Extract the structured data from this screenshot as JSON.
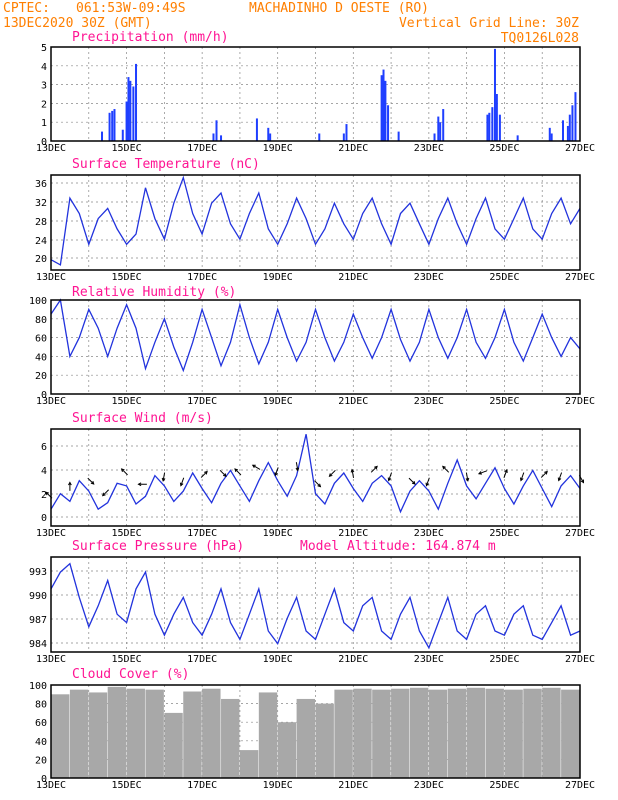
{
  "header": {
    "source": "CPTEC:",
    "coords": "061:53W-09:49S",
    "location": "MACHADINHO D OESTE (RO)",
    "date": "13DEC2020 30Z (GMT)",
    "grid_note": "Vertical Grid Line: 30Z",
    "model": "TQ0126L028",
    "altitude_label": "Model Altitude: 164.874 m"
  },
  "x_labels": [
    "13DEC",
    "15DEC",
    "17DEC",
    "19DEC",
    "21DEC",
    "23DEC",
    "25DEC",
    "27DEC"
  ],
  "colors": {
    "header": "#ff7f00",
    "title": "#ff1493",
    "series": "#2233dd",
    "bars": "#1f3fff",
    "cloud": "#a8a8a8"
  },
  "chart_data": [
    {
      "type": "bar",
      "title": "Precipitation (mm/h)",
      "ylim": [
        0,
        5
      ],
      "yticks": [
        "0",
        "1",
        "2",
        "3",
        "4",
        "5"
      ],
      "bars": [
        [
          1.35,
          0.5
        ],
        [
          1.55,
          1.5
        ],
        [
          1.62,
          1.6
        ],
        [
          1.68,
          1.7
        ],
        [
          1.9,
          0.6
        ],
        [
          2.0,
          2.1
        ],
        [
          2.05,
          3.4
        ],
        [
          2.1,
          3.2
        ],
        [
          2.18,
          2.9
        ],
        [
          2.25,
          4.1
        ],
        [
          4.3,
          0.4
        ],
        [
          4.38,
          1.1
        ],
        [
          4.5,
          0.3
        ],
        [
          5.45,
          1.2
        ],
        [
          5.75,
          0.7
        ],
        [
          5.8,
          0.4
        ],
        [
          7.1,
          0.4
        ],
        [
          7.75,
          0.4
        ],
        [
          7.82,
          0.9
        ],
        [
          8.75,
          3.5
        ],
        [
          8.8,
          3.8
        ],
        [
          8.85,
          3.2
        ],
        [
          8.92,
          1.9
        ],
        [
          9.2,
          0.5
        ],
        [
          10.15,
          0.4
        ],
        [
          10.25,
          1.3
        ],
        [
          10.3,
          1.0
        ],
        [
          10.38,
          1.7
        ],
        [
          11.55,
          1.4
        ],
        [
          11.6,
          1.5
        ],
        [
          11.68,
          1.8
        ],
        [
          11.75,
          4.9
        ],
        [
          11.8,
          2.5
        ],
        [
          11.88,
          1.4
        ],
        [
          12.35,
          0.3
        ],
        [
          13.2,
          0.7
        ],
        [
          13.25,
          0.4
        ],
        [
          13.55,
          1.1
        ],
        [
          13.68,
          0.8
        ],
        [
          13.73,
          1.4
        ],
        [
          13.8,
          1.9
        ],
        [
          13.88,
          2.6
        ]
      ]
    },
    {
      "type": "line",
      "title": "Surface Temperature (nC)",
      "ylim": [
        19,
        37.5
      ],
      "yticks": [
        "20",
        "24",
        "28",
        "32",
        "36"
      ],
      "x": [
        0,
        0.25,
        0.5,
        0.75,
        1,
        1.25,
        1.5,
        1.75,
        2,
        2.25,
        2.5,
        2.75,
        3,
        3.25,
        3.5,
        3.75,
        4,
        4.25,
        4.5,
        4.75,
        5,
        5.25,
        5.5,
        5.75,
        6,
        6.25,
        6.5,
        6.75,
        7,
        7.25,
        7.5,
        7.75,
        8,
        8.25,
        8.5,
        8.75,
        9,
        9.25,
        9.5,
        9.75,
        10,
        10.25,
        10.5,
        10.75,
        11,
        11.25,
        11.5,
        11.75,
        12,
        12.25,
        12.5,
        12.75,
        13,
        13.25,
        13.5,
        13.75,
        14
      ],
      "values": [
        21,
        20,
        33,
        30,
        24,
        29,
        31,
        27,
        24,
        26,
        35,
        29,
        25,
        32,
        37,
        30,
        26,
        32,
        34,
        28,
        25,
        30,
        34,
        27,
        24,
        28,
        33,
        29,
        24,
        27,
        32,
        28,
        25,
        30,
        33,
        28,
        24,
        30,
        32,
        28,
        24,
        29,
        33,
        28,
        24,
        29,
        33,
        27,
        25,
        29,
        33,
        27,
        25,
        30,
        33,
        28,
        31
      ]
    },
    {
      "type": "line",
      "title": "Relative Humidity (%)",
      "ylim": [
        0,
        100
      ],
      "yticks": [
        "0",
        "20",
        "40",
        "60",
        "80",
        "100"
      ],
      "x": [
        0,
        0.25,
        0.5,
        0.75,
        1,
        1.25,
        1.5,
        1.75,
        2,
        2.25,
        2.5,
        2.75,
        3,
        3.25,
        3.5,
        3.75,
        4,
        4.25,
        4.5,
        4.75,
        5,
        5.25,
        5.5,
        5.75,
        6,
        6.25,
        6.5,
        6.75,
        7,
        7.25,
        7.5,
        7.75,
        8,
        8.25,
        8.5,
        8.75,
        9,
        9.25,
        9.5,
        9.75,
        10,
        10.25,
        10.5,
        10.75,
        11,
        11.25,
        11.5,
        11.75,
        12,
        12.25,
        12.5,
        12.75,
        13,
        13.25,
        13.5,
        13.75,
        14
      ],
      "values": [
        85,
        100,
        40,
        60,
        90,
        70,
        40,
        70,
        95,
        70,
        27,
        55,
        80,
        50,
        25,
        55,
        90,
        60,
        30,
        55,
        95,
        60,
        32,
        55,
        90,
        60,
        35,
        55,
        90,
        60,
        35,
        55,
        85,
        60,
        38,
        60,
        90,
        58,
        35,
        55,
        90,
        60,
        38,
        60,
        90,
        55,
        38,
        60,
        90,
        55,
        35,
        60,
        85,
        60,
        40,
        60,
        48
      ]
    },
    {
      "type": "line",
      "title": "Surface Wind (m/s)",
      "ylim": [
        -0.3,
        7.2
      ],
      "yticks": [
        "0",
        "2",
        "4",
        "6"
      ],
      "x": [
        0,
        0.25,
        0.5,
        0.75,
        1,
        1.25,
        1.5,
        1.75,
        2,
        2.25,
        2.5,
        2.75,
        3,
        3.25,
        3.5,
        3.75,
        4,
        4.25,
        4.5,
        4.75,
        5,
        5.25,
        5.5,
        5.75,
        6,
        6.25,
        6.5,
        6.75,
        7,
        7.25,
        7.5,
        7.75,
        8,
        8.25,
        8.5,
        8.75,
        9,
        9.25,
        9.5,
        9.75,
        10,
        10.25,
        10.5,
        10.75,
        11,
        11.25,
        11.5,
        11.75,
        12,
        12.25,
        12.5,
        12.75,
        13,
        13.25,
        13.5,
        13.75,
        14
      ],
      "values": [
        1.0,
        2.2,
        1.6,
        3.2,
        2.4,
        1.0,
        1.5,
        3.0,
        2.8,
        1.4,
        2.0,
        3.6,
        2.8,
        1.6,
        2.4,
        3.8,
        2.6,
        1.5,
        3.0,
        4.0,
        2.8,
        1.6,
        3.2,
        4.6,
        3.2,
        2.0,
        3.6,
        6.8,
        2.2,
        1.4,
        3.0,
        3.8,
        2.6,
        1.6,
        3.0,
        3.6,
        2.8,
        0.8,
        2.4,
        3.2,
        2.4,
        1.0,
        3.0,
        4.8,
        2.8,
        1.8,
        3.0,
        4.2,
        2.6,
        1.4,
        2.8,
        4.0,
        2.6,
        1.2,
        2.8,
        3.6,
        2.6
      ],
      "wind_dir_deg": [
        315,
        45,
        0,
        270,
        135,
        200,
        225,
        250,
        315,
        200,
        270,
        160,
        190,
        140,
        200,
        290,
        45,
        200,
        135,
        170,
        315,
        150,
        300,
        340,
        200,
        220,
        170,
        320,
        135,
        180,
        225,
        300,
        350,
        200,
        45,
        300,
        200,
        100,
        135,
        210,
        200,
        45,
        315,
        270,
        170,
        200,
        250,
        135,
        20,
        45,
        200,
        310,
        45,
        100,
        200,
        210,
        150
      ]
    },
    {
      "type": "line",
      "title": "Surface Pressure (hPa)",
      "ylim": [
        983.5,
        994.8
      ],
      "yticks": [
        "984",
        "987",
        "990",
        "993"
      ],
      "x": [
        0,
        0.25,
        0.5,
        0.75,
        1,
        1.25,
        1.5,
        1.75,
        2,
        2.25,
        2.5,
        2.75,
        3,
        3.25,
        3.5,
        3.75,
        4,
        4.25,
        4.5,
        4.75,
        5,
        5.25,
        5.5,
        5.75,
        6,
        6.25,
        6.5,
        6.75,
        7,
        7.25,
        7.5,
        7.75,
        8,
        8.25,
        8.5,
        8.75,
        9,
        9.25,
        9.5,
        9.75,
        10,
        10.25,
        10.5,
        10.75,
        11,
        11.25,
        11.5,
        11.75,
        12,
        12.25,
        12.5,
        12.75,
        13,
        13.25,
        13.5,
        13.75,
        14
      ],
      "values": [
        991,
        993,
        994,
        990,
        986.5,
        989,
        992,
        988,
        987,
        991,
        993,
        988,
        985.5,
        988,
        990,
        987,
        985.5,
        988,
        991,
        987,
        985,
        988,
        991,
        986,
        984.5,
        987.5,
        990,
        986,
        985,
        988,
        991,
        987,
        986,
        989,
        990,
        986,
        985,
        988,
        990,
        986,
        984,
        987,
        990,
        986,
        985,
        988,
        989,
        986,
        985.5,
        988,
        989,
        985.5,
        985,
        987,
        989,
        985.5,
        986
      ]
    },
    {
      "type": "bar",
      "title": "Cloud Cover (%)",
      "ylim": [
        0,
        100
      ],
      "yticks": [
        "0",
        "20",
        "40",
        "60",
        "80",
        "100"
      ],
      "segments": [
        [
          0.0,
          0.5,
          90
        ],
        [
          0.5,
          1.0,
          95
        ],
        [
          1.0,
          1.5,
          92
        ],
        [
          1.5,
          2.0,
          98
        ],
        [
          2.0,
          2.5,
          96
        ],
        [
          2.5,
          3.0,
          95
        ],
        [
          3.0,
          3.5,
          70
        ],
        [
          3.5,
          4.0,
          93
        ],
        [
          4.0,
          4.5,
          96
        ],
        [
          4.5,
          5.0,
          85
        ],
        [
          5.0,
          5.5,
          30
        ],
        [
          5.5,
          6.0,
          92
        ],
        [
          6.0,
          6.5,
          60
        ],
        [
          6.5,
          7.0,
          85
        ],
        [
          7.0,
          7.5,
          80
        ],
        [
          7.5,
          8.0,
          95
        ],
        [
          8.0,
          8.5,
          96
        ],
        [
          8.5,
          9.0,
          95
        ],
        [
          9.0,
          9.5,
          96
        ],
        [
          9.5,
          10.0,
          97
        ],
        [
          10.0,
          10.5,
          95
        ],
        [
          10.5,
          11.0,
          96
        ],
        [
          11.0,
          11.5,
          97
        ],
        [
          11.5,
          12.0,
          96
        ],
        [
          12.0,
          12.5,
          95
        ],
        [
          12.5,
          13.0,
          96
        ],
        [
          13.0,
          13.5,
          97
        ],
        [
          13.5,
          14.0,
          95
        ]
      ]
    }
  ]
}
